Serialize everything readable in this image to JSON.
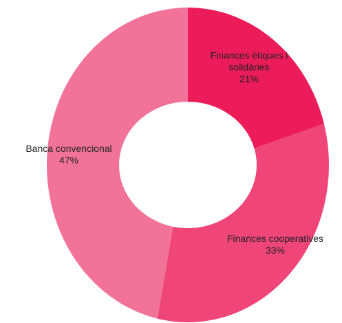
{
  "chart_data": {
    "type": "donut",
    "categories": [
      "Finances ètiques i solidàries",
      "Finances coopera­tives",
      "Banca convencional"
    ],
    "values": [
      21,
      33,
      47
    ],
    "value_labels": [
      "21%",
      "33%",
      "47%"
    ],
    "colors": [
      "#ec1c5a",
      "#ef4579",
      "#f27399"
    ]
  }
}
